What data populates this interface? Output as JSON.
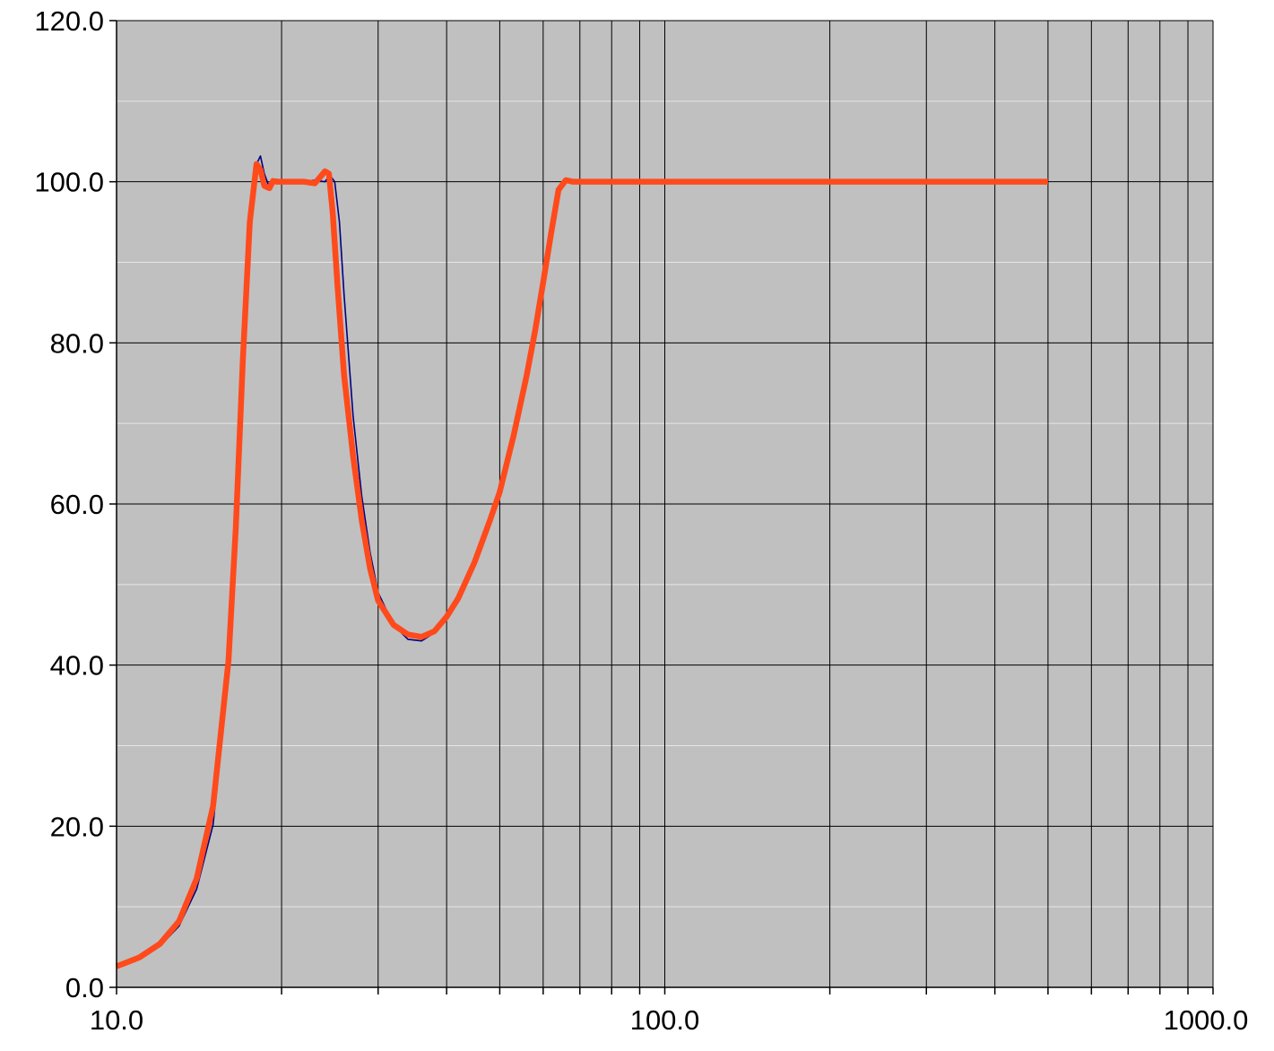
{
  "chart_data": {
    "type": "line",
    "x_scale": "log",
    "xlim": [
      10,
      1000
    ],
    "ylim": [
      0,
      120
    ],
    "x_major_ticks": [
      10,
      100,
      1000
    ],
    "x_tick_labels": [
      "10.0",
      "100.0",
      "1000.0"
    ],
    "x_minor_ticks": [
      20,
      30,
      40,
      50,
      60,
      70,
      80,
      90,
      200,
      300,
      400,
      500,
      600,
      700,
      800,
      900
    ],
    "y_ticks": [
      0,
      20,
      40,
      60,
      80,
      100,
      120
    ],
    "y_tick_labels": [
      "0.0",
      "20.0",
      "40.0",
      "60.0",
      "80.0",
      "100.0",
      "120.0"
    ],
    "y_minor_ticks": [
      10,
      30,
      50,
      70,
      90,
      110
    ],
    "grid": true,
    "legend": "none",
    "colors": {
      "plot_background": "#c0c0c0",
      "major_grid": "#000000",
      "minor_grid": "#e6e6e6",
      "series_measured": "#000080",
      "series_fit": "#ff4a1c"
    },
    "series": [
      {
        "color": "#000080",
        "x": [
          10,
          11,
          12,
          13,
          14,
          15,
          16,
          16.5,
          17,
          17.5,
          18,
          18.3,
          18.6,
          19.0,
          19.3,
          19.6,
          20.0,
          20.5,
          21,
          22,
          23,
          24,
          24.5,
          25,
          25.5,
          26,
          27,
          28,
          29,
          30,
          32,
          34,
          36,
          38,
          40,
          42,
          45,
          48,
          50,
          53,
          56,
          58,
          60,
          62,
          64,
          66,
          68,
          70,
          80,
          100,
          200,
          300,
          400,
          500
        ],
        "y": [
          2.6,
          3.6,
          5.1,
          7.6,
          12.2,
          20.2,
          38.5,
          54.0,
          74.0,
          92.0,
          102.2,
          103.2,
          101.0,
          99.3,
          99.8,
          100.3,
          100.0,
          100.0,
          100.0,
          100.0,
          100.2,
          100.0,
          100.8,
          100.0,
          95.0,
          86.0,
          71.0,
          61.0,
          54.0,
          49.0,
          45.0,
          43.2,
          43.0,
          44.0,
          46.0,
          48.5,
          53.0,
          58.5,
          62.0,
          69.0,
          76.5,
          82.0,
          88.0,
          94.0,
          99.2,
          100.4,
          100.0,
          100.0,
          100.0,
          100.0,
          100.0,
          100.0,
          100.0,
          100.0
        ]
      },
      {
        "color": "#ff4a1c",
        "x": [
          10,
          11,
          12,
          13,
          14,
          15,
          16,
          16.5,
          17,
          17.5,
          18,
          18.3,
          18.6,
          19.0,
          19.3,
          19.6,
          20.0,
          20.5,
          21,
          22,
          23,
          24,
          24.4,
          24.8,
          25.3,
          26,
          27,
          28,
          29,
          30,
          32,
          34,
          36,
          38,
          40,
          42,
          45,
          48,
          50,
          53,
          56,
          58,
          60,
          62,
          64,
          66,
          68,
          70,
          80,
          100,
          200,
          300,
          400,
          500
        ],
        "y": [
          2.6,
          3.7,
          5.4,
          8.2,
          13.5,
          22.5,
          40.5,
          57.0,
          78.0,
          95.0,
          102.2,
          101.5,
          99.5,
          99.2,
          100.1,
          100.0,
          100.0,
          100.0,
          100.0,
          100.0,
          99.8,
          101.3,
          101.0,
          96.0,
          87.0,
          76.0,
          66.0,
          58.0,
          52.0,
          48.0,
          45.0,
          43.8,
          43.5,
          44.2,
          46.0,
          48.3,
          52.8,
          58.0,
          61.5,
          68.5,
          76.0,
          81.5,
          87.5,
          93.5,
          99.0,
          100.2,
          100.0,
          100.0,
          100.0,
          100.0,
          100.0,
          100.0,
          100.0,
          100.0
        ]
      }
    ]
  }
}
